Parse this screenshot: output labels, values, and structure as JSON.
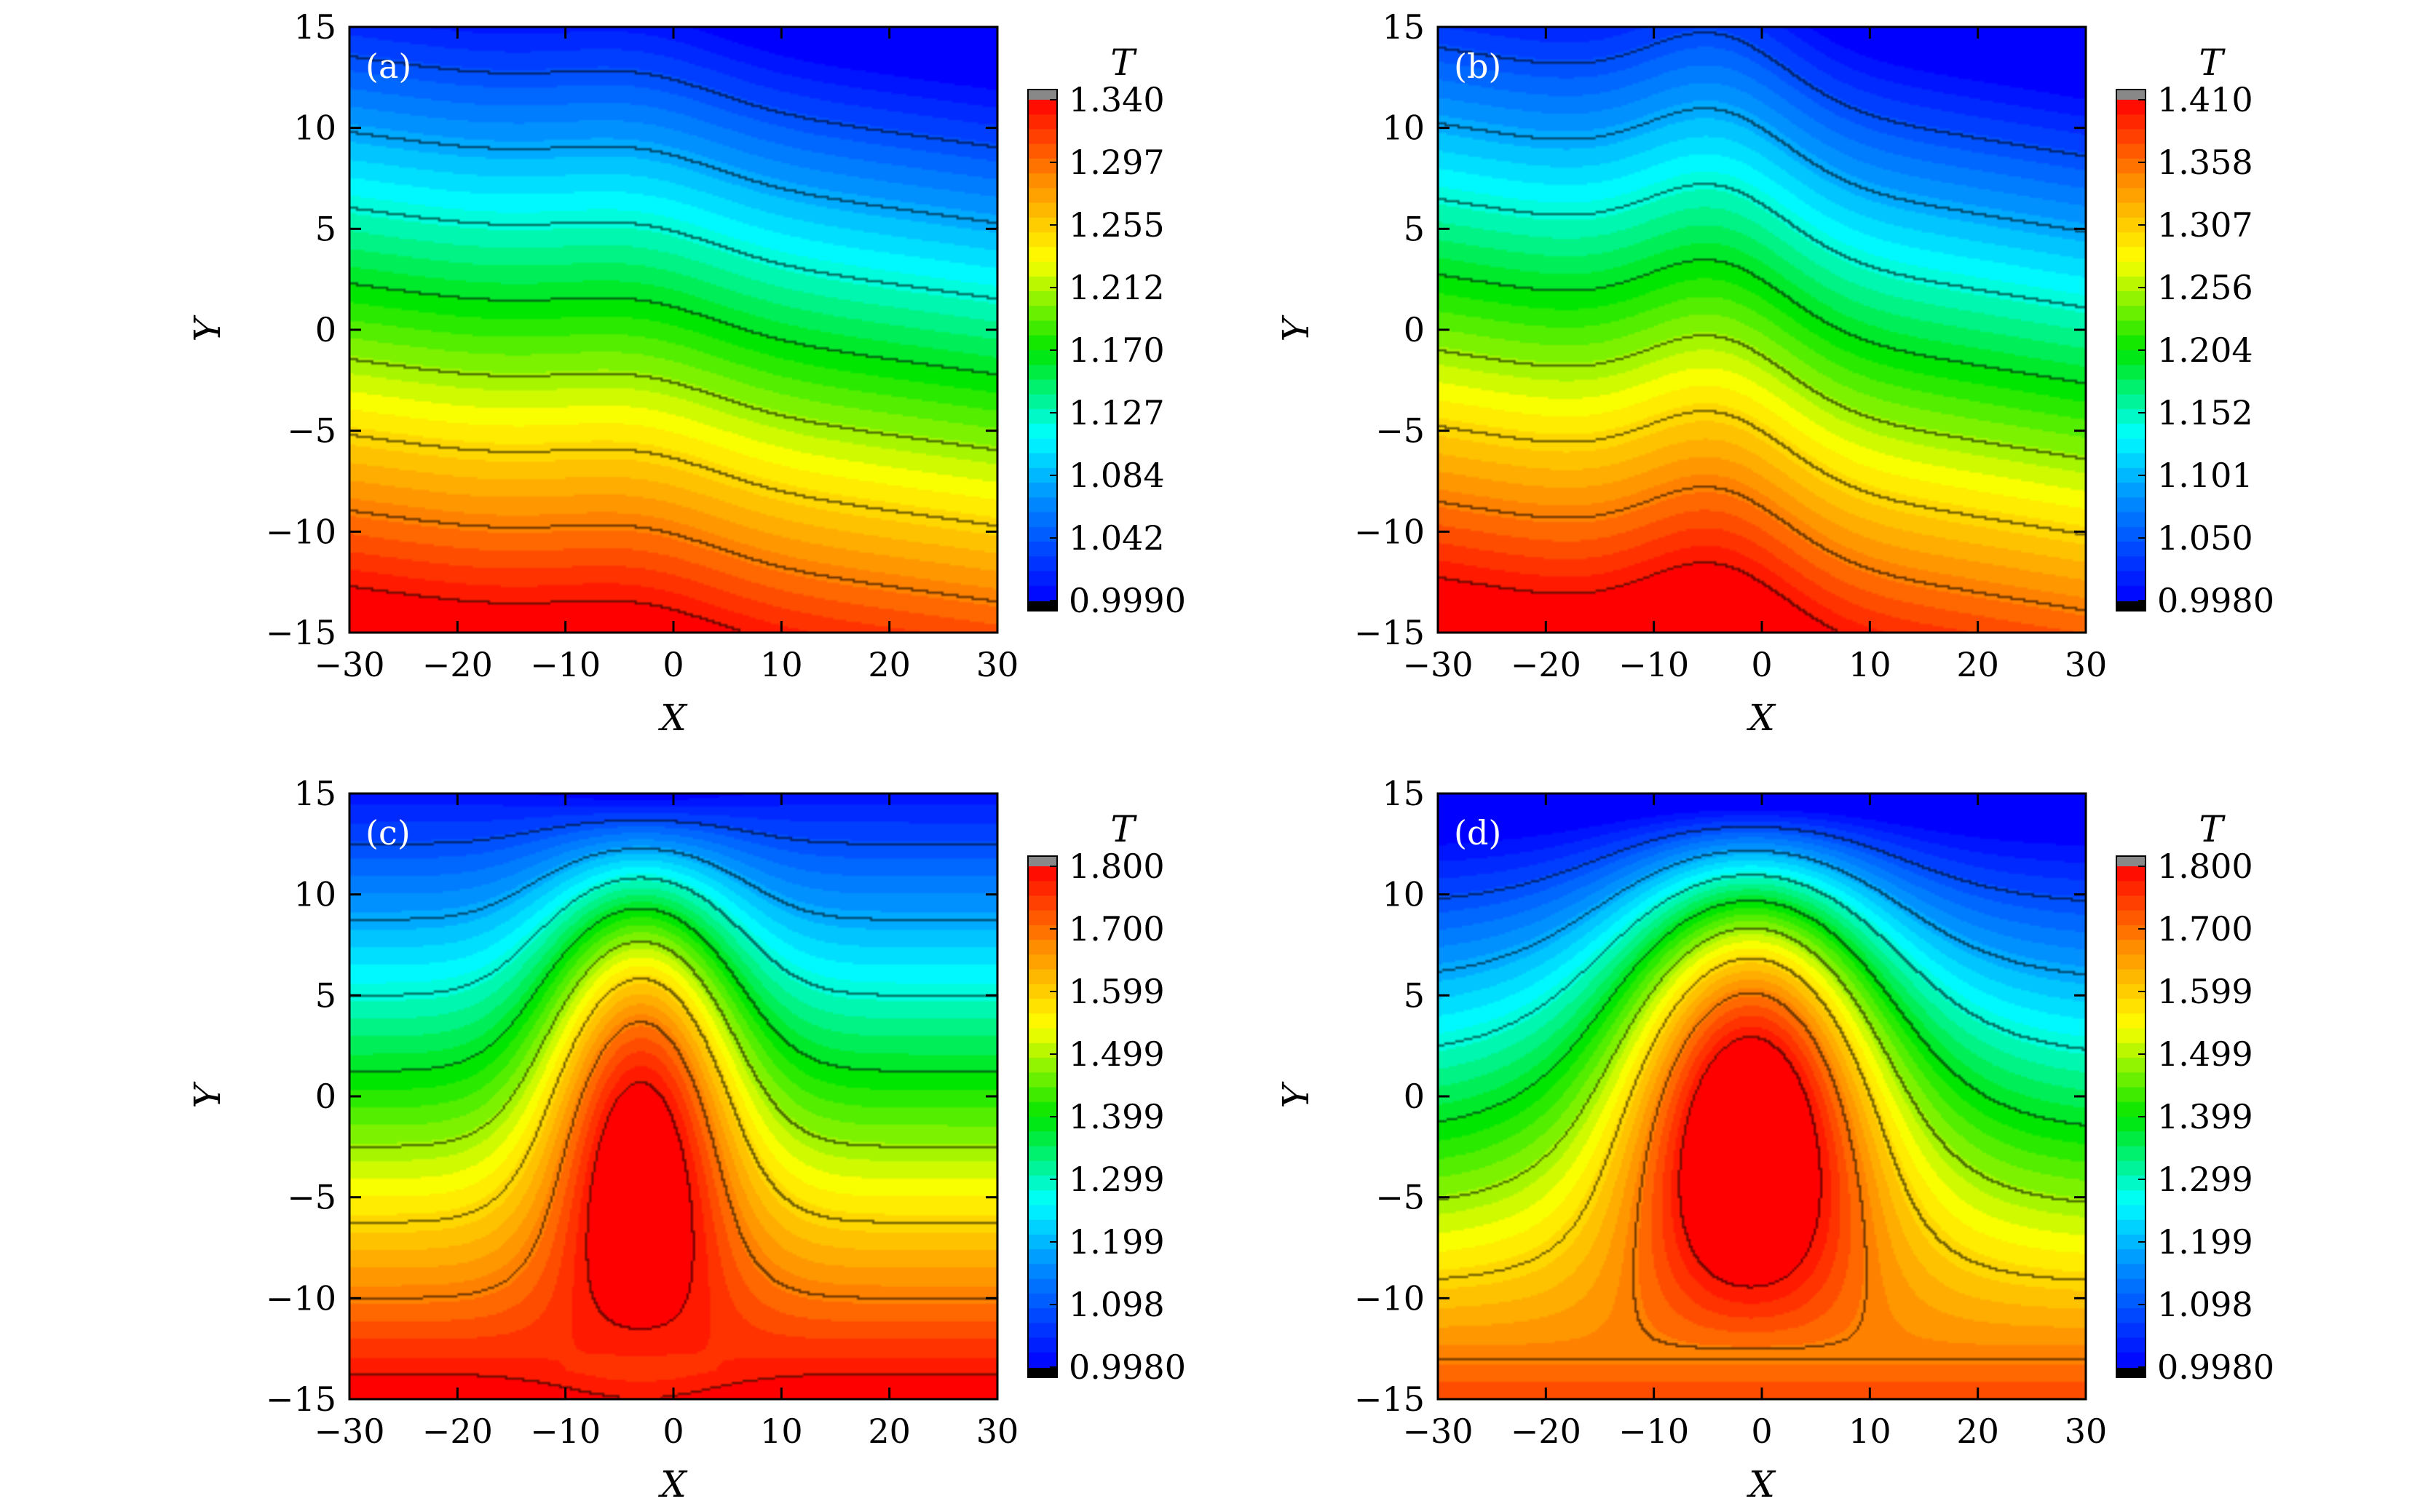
{
  "chart_data": [
    {
      "type": "heatmap",
      "panel_label": "(a)",
      "xlabel": "X",
      "ylabel": "Y",
      "xlim": [
        -30,
        30
      ],
      "ylim": [
        -15,
        15
      ],
      "xticks": [
        -30,
        -20,
        -10,
        0,
        10,
        20,
        30
      ],
      "yticks": [
        -15,
        -10,
        -5,
        0,
        5,
        10,
        15
      ],
      "xtick_labels": [
        "−30",
        "−20",
        "−10",
        "0",
        "10",
        "20",
        "30"
      ],
      "ytick_labels": [
        "−15",
        "−10",
        "−5",
        "0",
        "5",
        "10",
        "15"
      ],
      "colorbar": {
        "title": "T",
        "min": 0.999,
        "max": 1.34,
        "tick_labels": [
          "1.340",
          "1.297",
          "1.255",
          "1.212",
          "1.170",
          "1.127",
          "1.084",
          "1.042",
          "0.9990"
        ]
      },
      "field": {
        "pattern": "tilted-layers",
        "amplitude": 0.05,
        "width": 10,
        "center_x": -3
      },
      "grid": false
    },
    {
      "type": "heatmap",
      "panel_label": "(b)",
      "xlabel": "X",
      "ylabel": "Y",
      "xlim": [
        -30,
        30
      ],
      "ylim": [
        -15,
        15
      ],
      "xticks": [
        -30,
        -20,
        -10,
        0,
        10,
        20,
        30
      ],
      "yticks": [
        -15,
        -10,
        -5,
        0,
        5,
        10,
        15
      ],
      "xtick_labels": [
        "−30",
        "−20",
        "−10",
        "0",
        "10",
        "20",
        "30"
      ],
      "ytick_labels": [
        "−15",
        "−10",
        "−5",
        "0",
        "5",
        "10",
        "15"
      ],
      "colorbar": {
        "title": "T",
        "min": 0.998,
        "max": 1.41,
        "tick_labels": [
          "1.410",
          "1.358",
          "1.307",
          "1.256",
          "1.204",
          "1.152",
          "1.101",
          "1.050",
          "0.9980"
        ]
      },
      "field": {
        "pattern": "tilted-bump",
        "amplitude": 0.1,
        "width": 9,
        "center_x": -4
      },
      "grid": false
    },
    {
      "type": "heatmap",
      "panel_label": "(c)",
      "xlabel": "X",
      "ylabel": "Y",
      "xlim": [
        -30,
        30
      ],
      "ylim": [
        -15,
        15
      ],
      "xticks": [
        -30,
        -20,
        -10,
        0,
        10,
        20,
        30
      ],
      "yticks": [
        -15,
        -10,
        -5,
        0,
        5,
        10,
        15
      ],
      "xtick_labels": [
        "−30",
        "−20",
        "−10",
        "0",
        "10",
        "20",
        "30"
      ],
      "ytick_labels": [
        "−15",
        "−10",
        "−5",
        "0",
        "5",
        "10",
        "15"
      ],
      "colorbar": {
        "title": "T",
        "min": 0.998,
        "max": 1.8,
        "tick_labels": [
          "1.800",
          "1.700",
          "1.599",
          "1.499",
          "1.399",
          "1.299",
          "1.199",
          "1.098",
          "0.9980"
        ]
      },
      "field": {
        "pattern": "plume",
        "amplitude": 0.55,
        "width": 9,
        "center_x": -3
      },
      "grid": false
    },
    {
      "type": "heatmap",
      "panel_label": "(d)",
      "xlabel": "X",
      "ylabel": "Y",
      "xlim": [
        -30,
        30
      ],
      "ylim": [
        -15,
        15
      ],
      "xticks": [
        -30,
        -20,
        -10,
        0,
        10,
        20,
        30
      ],
      "yticks": [
        -15,
        -10,
        -5,
        0,
        5,
        10,
        15
      ],
      "xtick_labels": [
        "−30",
        "−20",
        "−10",
        "0",
        "10",
        "20",
        "30"
      ],
      "ytick_labels": [
        "−15",
        "−10",
        "−5",
        "0",
        "5",
        "10",
        "15"
      ],
      "colorbar": {
        "title": "T",
        "min": 0.998,
        "max": 1.8,
        "tick_labels": [
          "1.800",
          "1.700",
          "1.599",
          "1.499",
          "1.399",
          "1.299",
          "1.199",
          "1.098",
          "0.9980"
        ]
      },
      "field": {
        "pattern": "mushroom",
        "amplitude": 0.5,
        "width": 11,
        "center_x": -1
      },
      "grid": false
    }
  ]
}
